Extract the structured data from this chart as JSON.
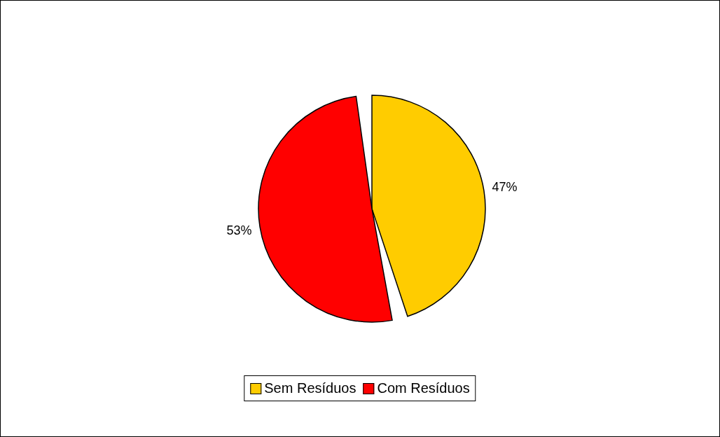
{
  "chart_data": {
    "type": "pie",
    "categories": [
      "Sem Resíduos",
      "Com Resíduos"
    ],
    "values": [
      47,
      53
    ],
    "colors": [
      "#ffcc00",
      "#ff0000"
    ],
    "value_labels": [
      "47%",
      "53%"
    ],
    "legend": "bottom"
  }
}
